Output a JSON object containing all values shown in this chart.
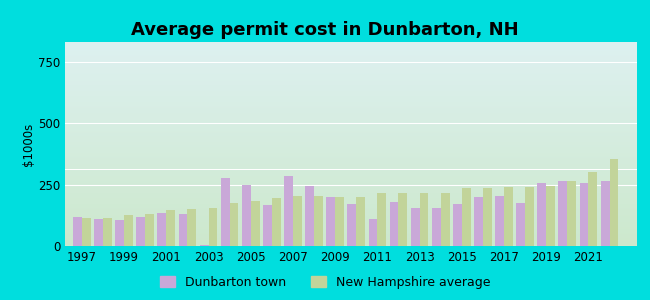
{
  "title": "Average permit cost in Dunbarton, NH",
  "ylabel": "$1000s",
  "years": [
    1997,
    1998,
    1999,
    2000,
    2001,
    2002,
    2003,
    2004,
    2005,
    2006,
    2007,
    2008,
    2009,
    2010,
    2011,
    2012,
    2013,
    2014,
    2015,
    2016,
    2017,
    2018,
    2019,
    2020,
    2021,
    2022
  ],
  "dunbarton": [
    120,
    110,
    105,
    120,
    135,
    130,
    5,
    275,
    250,
    165,
    285,
    245,
    200,
    170,
    110,
    180,
    155,
    155,
    170,
    200,
    205,
    175,
    255,
    265,
    255,
    265
  ],
  "nh_avg": [
    115,
    115,
    125,
    130,
    145,
    150,
    155,
    175,
    185,
    195,
    205,
    205,
    200,
    200,
    215,
    215,
    215,
    215,
    235,
    235,
    240,
    240,
    245,
    265,
    300,
    355
  ],
  "dunbarton_color": "#c9a8d8",
  "nh_color": "#c2d49a",
  "background_outer": "#00dede",
  "background_inner_top": "#ddf0f0",
  "background_inner_bottom": "#cce8cc",
  "yticks": [
    0,
    250,
    500,
    750
  ],
  "ylim": [
    0,
    830
  ],
  "bar_width": 0.42,
  "title_fontsize": 13,
  "axis_fontsize": 8.5,
  "legend_label_dunbarton": "Dunbarton town",
  "legend_label_nh": "New Hampshire average"
}
